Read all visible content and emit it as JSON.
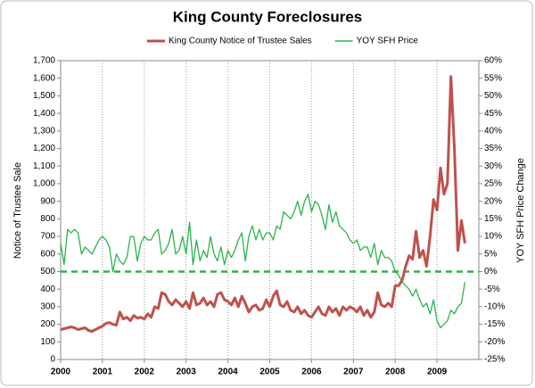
{
  "chart_data": {
    "type": "line",
    "title": "King County Foreclosures",
    "ylabel": "Notice of Trustee Sale",
    "y2label": "YOY SFH Price Change",
    "categories": [
      "2000",
      null,
      null,
      null,
      null,
      null,
      null,
      null,
      null,
      null,
      null,
      null,
      "2001",
      null,
      null,
      null,
      null,
      null,
      null,
      null,
      null,
      null,
      null,
      null,
      "2002",
      null,
      null,
      null,
      null,
      null,
      null,
      null,
      null,
      null,
      null,
      null,
      "2003",
      null,
      null,
      null,
      null,
      null,
      null,
      null,
      null,
      null,
      null,
      null,
      "2004",
      null,
      null,
      null,
      null,
      null,
      null,
      null,
      null,
      null,
      null,
      null,
      "2005",
      null,
      null,
      null,
      null,
      null,
      null,
      null,
      null,
      null,
      null,
      null,
      "2006",
      null,
      null,
      null,
      null,
      null,
      null,
      null,
      null,
      null,
      null,
      null,
      "2007",
      null,
      null,
      null,
      null,
      null,
      null,
      null,
      null,
      null,
      null,
      null,
      "2008",
      null,
      null,
      null,
      null,
      null,
      null,
      null,
      null,
      null,
      null,
      null,
      "2009",
      null,
      null,
      null,
      null,
      null,
      null,
      null,
      null,
      null,
      null,
      null
    ],
    "series": [
      {
        "name": "King County Notice of Trustee Sales",
        "color": "#c0504d",
        "axis": "y",
        "values": [
          170,
          175,
          180,
          185,
          180,
          170,
          175,
          180,
          165,
          160,
          170,
          180,
          190,
          205,
          210,
          200,
          195,
          270,
          230,
          240,
          220,
          250,
          235,
          240,
          230,
          260,
          240,
          300,
          290,
          380,
          370,
          330,
          310,
          340,
          320,
          300,
          330,
          290,
          380,
          310,
          320,
          350,
          310,
          330,
          300,
          370,
          380,
          340,
          330,
          310,
          350,
          300,
          360,
          320,
          270,
          300,
          310,
          280,
          290,
          340,
          300,
          360,
          390,
          310,
          300,
          330,
          280,
          270,
          300,
          260,
          280,
          250,
          240,
          270,
          300,
          260,
          250,
          300,
          270,
          290,
          250,
          300,
          280,
          300,
          290,
          270,
          300,
          250,
          280,
          240,
          270,
          380,
          310,
          300,
          320,
          300,
          420,
          420,
          450,
          530,
          590,
          570,
          730,
          580,
          620,
          530,
          700,
          910,
          850,
          1090,
          940,
          1000,
          1610,
          1200,
          620,
          790,
          660,
          null,
          null,
          null
        ]
      },
      {
        "name": "YOY SFH Price",
        "color": "#2bb34b",
        "axis": "y2",
        "values": [
          8,
          2,
          12,
          11,
          12,
          11,
          5,
          7,
          6,
          5,
          7,
          9,
          10,
          9,
          7,
          0,
          5,
          3,
          2,
          4,
          10,
          10,
          3,
          8,
          10,
          9,
          9,
          11,
          12,
          5,
          6,
          8,
          12,
          5,
          6,
          10,
          5,
          14,
          2,
          9,
          3,
          6,
          4,
          10,
          5,
          3,
          7,
          2,
          6,
          4,
          6,
          9,
          11,
          3,
          10,
          13,
          9,
          12,
          9,
          11,
          11,
          9,
          13,
          12,
          17,
          16,
          15,
          17,
          20,
          16,
          20,
          22,
          17,
          20,
          19,
          16,
          12,
          19,
          14,
          17,
          13,
          12,
          11,
          9,
          8,
          9,
          6,
          7,
          7,
          4,
          8,
          2,
          6,
          4,
          4,
          3,
          0,
          -1,
          -3,
          -4,
          -5,
          -7,
          -5,
          -8,
          -10,
          -9,
          -12,
          -8,
          -14,
          -16,
          -15,
          -14,
          -11,
          -12,
          -10,
          -9,
          -3,
          null,
          null,
          null
        ]
      }
    ],
    "ylim": [
      0,
      1700
    ],
    "yticks": [
      0,
      100,
      200,
      300,
      400,
      500,
      600,
      700,
      800,
      900,
      {
        "value": 1000,
        "label": "1,000"
      },
      {
        "value": 1100,
        "label": "1,100"
      },
      {
        "value": 1200,
        "label": "1,200"
      },
      {
        "value": 1300,
        "label": "1,300"
      },
      {
        "value": 1400,
        "label": "1,400"
      },
      {
        "value": 1500,
        "label": "1,500"
      },
      {
        "value": 1600,
        "label": "1,600"
      },
      {
        "value": 1700,
        "label": "1,700"
      }
    ],
    "y2lim": [
      -25,
      60
    ],
    "y2ticks": [
      {
        "value": -25,
        "label": "-25%"
      },
      {
        "value": -20,
        "label": "-20%"
      },
      {
        "value": -15,
        "label": "-15%"
      },
      {
        "value": -10,
        "label": "-10%"
      },
      {
        "value": -5,
        "label": "-5%"
      },
      {
        "value": 0,
        "label": "0%"
      },
      {
        "value": 5,
        "label": "5%"
      },
      {
        "value": 10,
        "label": "10%"
      },
      {
        "value": 15,
        "label": "15%"
      },
      {
        "value": 20,
        "label": "20%"
      },
      {
        "value": 25,
        "label": "25%"
      },
      {
        "value": 30,
        "label": "30%"
      },
      {
        "value": 35,
        "label": "35%"
      },
      {
        "value": 40,
        "label": "40%"
      },
      {
        "value": 45,
        "label": "45%"
      },
      {
        "value": 50,
        "label": "50%"
      },
      {
        "value": 55,
        "label": "55%"
      },
      {
        "value": 60,
        "label": "60%"
      }
    ],
    "y2_reference": 0,
    "xgrid": true,
    "legend": "top"
  }
}
